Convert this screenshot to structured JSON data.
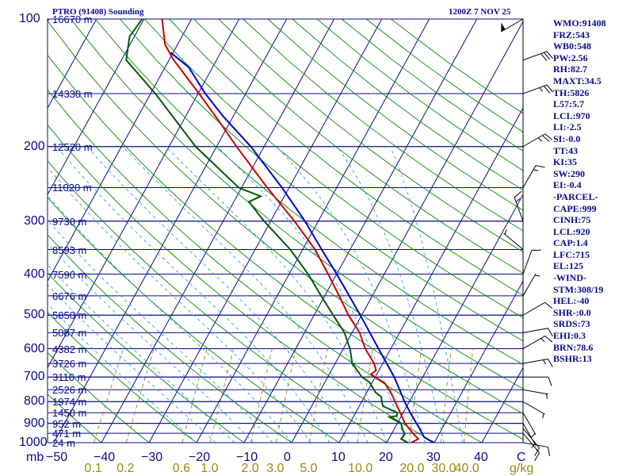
{
  "header": {
    "station": "PTRO (91408) Sounding",
    "datetime": "1200Z  7 NOV 25"
  },
  "indices": [
    "WMO:91408",
    "FRZ:543",
    "WB0:548",
    "PW:2.56",
    "RH:82.7",
    "MAXT:34.5",
    "TH:5826",
    "L57:5.7",
    "LCL:970",
    "LI:-2.5",
    "SI:-0.0",
    "TT:43",
    "KI:35",
    "SW:290",
    "EI:-0.4",
    "-PARCEL-",
    "CAPE:999",
    "CINH:75",
    "LCL:920",
    "CAP:1.4",
    "LFC:715",
    "EL:125",
    "-WIND-",
    "STM:308/19",
    "HEL:-40",
    "SHR-:0.0",
    "SRDS:73",
    "EHI:0.3",
    "BRN:78.6",
    "BSHR:13"
  ],
  "colors": {
    "axes": "#0a0a8c",
    "isotherm": "#0a0a8c",
    "dry_adiabat": "#008a00",
    "moist_adiabat": "#2b9fe0",
    "mixing_ratio": "#8c8c20",
    "temperature": "#cc0000",
    "dewpoint": "#005a00",
    "parcel": "#0000cc",
    "wind": "#000000"
  },
  "chart_data": {
    "type": "line",
    "title": "PTRO (91408) Sounding",
    "ylabel": "mb",
    "xlabel": "C",
    "mixing_ratio_unit": "g/kg",
    "ylim": [
      1000,
      100
    ],
    "xlim": [
      -50,
      50
    ],
    "pressure_ticks": [
      "100",
      "200",
      "300",
      "400",
      "500",
      "600",
      "700",
      "800",
      "900",
      "1000"
    ],
    "pressure_tick_values": [
      100,
      200,
      300,
      400,
      500,
      600,
      700,
      800,
      900,
      1000
    ],
    "temperature_ticks": [
      "−50",
      "−40",
      "−30",
      "−20",
      "−10",
      "0",
      "10",
      "20",
      "30",
      "40"
    ],
    "temperature_tick_values": [
      -50,
      -40,
      -30,
      -20,
      -10,
      0,
      10,
      20,
      30,
      40
    ],
    "mixing_ratio_ticks": [
      "0.1",
      "0.2",
      "0.6",
      "1.0",
      "2.0",
      "3.0",
      "5.0",
      "10.0",
      "20.0",
      "30.0",
      "40.0"
    ],
    "mixing_ratio_values": [
      0.1,
      0.2,
      0.6,
      1.0,
      2.0,
      3.0,
      5.0,
      10.0,
      20.0,
      30.0,
      40.0
    ],
    "height_labels": [
      {
        "p": 100,
        "label": "16670 m"
      },
      {
        "p": 150,
        "label": "14330 m"
      },
      {
        "p": 200,
        "label": "12520 m"
      },
      {
        "p": 250,
        "label": "11020 m"
      },
      {
        "p": 300,
        "label": "9730 m"
      },
      {
        "p": 350,
        "label": "8593 m"
      },
      {
        "p": 400,
        "label": "7590 m"
      },
      {
        "p": 450,
        "label": "6676 m"
      },
      {
        "p": 500,
        "label": "5850 m"
      },
      {
        "p": 550,
        "label": "5087 m"
      },
      {
        "p": 600,
        "label": "4382 m"
      },
      {
        "p": 650,
        "label": "3726 m"
      },
      {
        "p": 700,
        "label": "3110 m"
      },
      {
        "p": 750,
        "label": "2526 m"
      },
      {
        "p": 800,
        "label": "1974 m"
      },
      {
        "p": 850,
        "label": "1450 m"
      },
      {
        "p": 900,
        "label": "952 m"
      },
      {
        "p": 950,
        "label": "471 m"
      },
      {
        "p": 1000,
        "label": "24 m"
      }
    ],
    "series": [
      {
        "name": "temperature",
        "points": [
          [
            1006,
            25.6
          ],
          [
            1000,
            25.2
          ],
          [
            980,
            26.2
          ],
          [
            960,
            25.0
          ],
          [
            925,
            23.0
          ],
          [
            900,
            21.6
          ],
          [
            850,
            19.4
          ],
          [
            800,
            17.0
          ],
          [
            775,
            15.8
          ],
          [
            750,
            14.4
          ],
          [
            725,
            12.8
          ],
          [
            700,
            10.0
          ],
          [
            690,
            8.8
          ],
          [
            675,
            9.4
          ],
          [
            650,
            8.2
          ],
          [
            600,
            4.6
          ],
          [
            550,
            1.6
          ],
          [
            500,
            -2.8
          ],
          [
            450,
            -7.0
          ],
          [
            400,
            -11.8
          ],
          [
            350,
            -17.4
          ],
          [
            300,
            -25.0
          ],
          [
            250,
            -34.6
          ],
          [
            200,
            -45.8
          ],
          [
            175,
            -52.2
          ],
          [
            150,
            -59.8
          ],
          [
            125,
            -69.0
          ],
          [
            115,
            -72.6
          ],
          [
            100,
            -76.2
          ]
        ]
      },
      {
        "name": "dewpoint",
        "points": [
          [
            1006,
            24.2
          ],
          [
            1000,
            24.4
          ],
          [
            980,
            22.6
          ],
          [
            955,
            22.8
          ],
          [
            925,
            21.6
          ],
          [
            900,
            20.8
          ],
          [
            870,
            17.6
          ],
          [
            865,
            19.0
          ],
          [
            850,
            18.8
          ],
          [
            820,
            15.0
          ],
          [
            800,
            14.2
          ],
          [
            780,
            13.6
          ],
          [
            760,
            11.8
          ],
          [
            740,
            10.6
          ],
          [
            720,
            9.4
          ],
          [
            700,
            7.2
          ],
          [
            650,
            3.6
          ],
          [
            600,
            1.4
          ],
          [
            550,
            -1.6
          ],
          [
            500,
            -6.0
          ],
          [
            450,
            -10.8
          ],
          [
            400,
            -16.0
          ],
          [
            350,
            -22.6
          ],
          [
            300,
            -31.4
          ],
          [
            270,
            -36.8
          ],
          [
            262,
            -35.0
          ],
          [
            250,
            -40.6
          ],
          [
            200,
            -54.4
          ],
          [
            150,
            -69.0
          ],
          [
            125,
            -79.0
          ],
          [
            110,
            -81.0
          ],
          [
            100,
            -80.4
          ]
        ]
      },
      {
        "name": "parcel",
        "points": [
          [
            1000,
            30.0
          ],
          [
            990,
            29.0
          ],
          [
            970,
            27.2
          ],
          [
            920,
            25.0
          ],
          [
            850,
            21.5
          ],
          [
            800,
            19.0
          ],
          [
            700,
            14.0
          ],
          [
            600,
            7.4
          ],
          [
            500,
            -0.3
          ],
          [
            400,
            -10.0
          ],
          [
            350,
            -16.0
          ],
          [
            300,
            -22.8
          ],
          [
            250,
            -31.5
          ],
          [
            200,
            -42.8
          ],
          [
            170,
            -52.0
          ],
          [
            150,
            -58.5
          ],
          [
            130,
            -65.0
          ],
          [
            120,
            -70.5
          ]
        ]
      }
    ],
    "wind_barbs": [
      {
        "p": 1000,
        "dir": 100,
        "spd": 10
      },
      {
        "p": 950,
        "dir": 140,
        "spd": 10
      },
      {
        "p": 925,
        "dir": 140,
        "spd": 10
      },
      {
        "p": 900,
        "dir": 150,
        "spd": 5
      },
      {
        "p": 850,
        "dir": 150,
        "spd": 5
      },
      {
        "p": 800,
        "dir": 120,
        "spd": 5
      },
      {
        "p": 750,
        "dir": 100,
        "spd": 5
      },
      {
        "p": 700,
        "dir": 90,
        "spd": 10
      },
      {
        "p": 650,
        "dir": 80,
        "spd": 15
      },
      {
        "p": 600,
        "dir": 60,
        "spd": 15
      },
      {
        "p": 550,
        "dir": 80,
        "spd": 10
      },
      {
        "p": 500,
        "dir": 60,
        "spd": 10
      },
      {
        "p": 450,
        "dir": 30,
        "spd": 5
      },
      {
        "p": 400,
        "dir": 20,
        "spd": 10
      },
      {
        "p": 350,
        "dir": 310,
        "spd": 5
      },
      {
        "p": 300,
        "dir": 340,
        "spd": 15
      },
      {
        "p": 250,
        "dir": 30,
        "spd": 15
      },
      {
        "p": 200,
        "dir": 60,
        "spd": 25
      },
      {
        "p": 150,
        "dir": 70,
        "spd": 25
      },
      {
        "p": 125,
        "dir": 70,
        "spd": 30
      },
      {
        "p": 100,
        "dir": 240,
        "spd": 50
      }
    ]
  }
}
